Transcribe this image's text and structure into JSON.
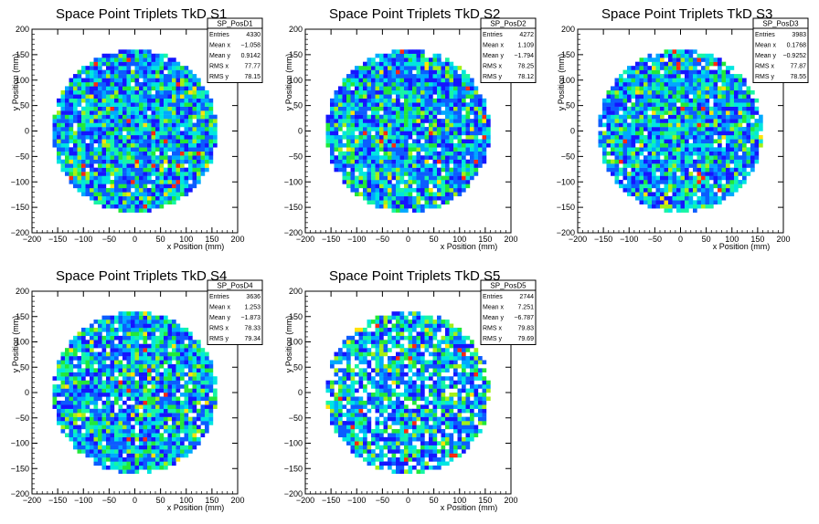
{
  "colors": {
    "background": "#ffffff",
    "frame": "#000000"
  },
  "chart_data": [
    {
      "type": "heatmap",
      "title": "Space Point Triplets TkD S1",
      "xlabel": "x Position (mm)",
      "ylabel": "y Position (mm)",
      "xlim": [
        -200,
        200
      ],
      "ylim": [
        -200,
        200
      ],
      "xticks": [
        -200,
        -150,
        -100,
        -50,
        0,
        50,
        100,
        150,
        200
      ],
      "yticks": [
        -200,
        -150,
        -100,
        -50,
        0,
        50,
        100,
        150,
        200
      ],
      "stats": {
        "name": "SP_PosD1",
        "rows": [
          {
            "label": "Entries",
            "value": "4330"
          },
          {
            "label": "Mean x",
            "value": "−1.058"
          },
          {
            "label": "Mean y",
            "value": "0.9142"
          },
          {
            "label": "RMS x",
            "value": "77.77"
          },
          {
            "label": "RMS y",
            "value": "78.15"
          }
        ]
      },
      "distribution": {
        "radius": 160,
        "bin_size": 8,
        "fill_fraction": 0.97,
        "mean_bin_content": 8.6
      }
    },
    {
      "type": "heatmap",
      "title": "Space Point Triplets TkD S2",
      "xlabel": "x Position (mm)",
      "ylabel": "y Position (mm)",
      "xlim": [
        -200,
        200
      ],
      "ylim": [
        -200,
        200
      ],
      "xticks": [
        -200,
        -150,
        -100,
        -50,
        0,
        50,
        100,
        150,
        200
      ],
      "yticks": [
        -200,
        -150,
        -100,
        -50,
        0,
        50,
        100,
        150,
        200
      ],
      "stats": {
        "name": "SP_PosD2",
        "rows": [
          {
            "label": "Entries",
            "value": "4272"
          },
          {
            "label": "Mean x",
            "value": "1.109"
          },
          {
            "label": "Mean y",
            "value": "−1.794"
          },
          {
            "label": "RMS x",
            "value": "78.25"
          },
          {
            "label": "RMS y",
            "value": "78.12"
          }
        ]
      },
      "distribution": {
        "radius": 160,
        "bin_size": 8,
        "fill_fraction": 0.96,
        "mean_bin_content": 8.5
      }
    },
    {
      "type": "heatmap",
      "title": "Space Point Triplets TkD S3",
      "xlabel": "x Position (mm)",
      "ylabel": "y Position (mm)",
      "xlim": [
        -200,
        200
      ],
      "ylim": [
        -200,
        200
      ],
      "xticks": [
        -200,
        -150,
        -100,
        -50,
        0,
        50,
        100,
        150,
        200
      ],
      "yticks": [
        -200,
        -150,
        -100,
        -50,
        0,
        50,
        100,
        150,
        200
      ],
      "stats": {
        "name": "SP_PosD3",
        "rows": [
          {
            "label": "Entries",
            "value": "3983"
          },
          {
            "label": "Mean x",
            "value": "0.1768"
          },
          {
            "label": "Mean y",
            "value": "−0.9252"
          },
          {
            "label": "RMS x",
            "value": "77.87"
          },
          {
            "label": "RMS y",
            "value": "78.55"
          }
        ]
      },
      "distribution": {
        "radius": 160,
        "bin_size": 8,
        "fill_fraction": 0.95,
        "mean_bin_content": 7.9
      }
    },
    {
      "type": "heatmap",
      "title": "Space Point Triplets TkD S4",
      "xlabel": "x Position (mm)",
      "ylabel": "y Position (mm)",
      "xlim": [
        -200,
        200
      ],
      "ylim": [
        -200,
        200
      ],
      "xticks": [
        -200,
        -150,
        -100,
        -50,
        0,
        50,
        100,
        150,
        200
      ],
      "yticks": [
        -200,
        -150,
        -100,
        -50,
        0,
        50,
        100,
        150,
        200
      ],
      "stats": {
        "name": "SP_PosD4",
        "rows": [
          {
            "label": "Entries",
            "value": "3636"
          },
          {
            "label": "Mean x",
            "value": "1.253"
          },
          {
            "label": "Mean y",
            "value": "−1.873"
          },
          {
            "label": "RMS x",
            "value": "78.33"
          },
          {
            "label": "RMS y",
            "value": "79.34"
          }
        ]
      },
      "distribution": {
        "radius": 160,
        "bin_size": 8,
        "fill_fraction": 0.94,
        "mean_bin_content": 7.3
      }
    },
    {
      "type": "heatmap",
      "title": "Space Point Triplets TkD S5",
      "xlabel": "x Position (mm)",
      "ylabel": "y Position (mm)",
      "xlim": [
        -200,
        200
      ],
      "ylim": [
        -200,
        200
      ],
      "xticks": [
        -200,
        -150,
        -100,
        -50,
        0,
        50,
        100,
        150,
        200
      ],
      "yticks": [
        -200,
        -150,
        -100,
        -50,
        0,
        50,
        100,
        150,
        200
      ],
      "stats": {
        "name": "SP_PosD5",
        "rows": [
          {
            "label": "Entries",
            "value": "2744"
          },
          {
            "label": "Mean x",
            "value": "7.251"
          },
          {
            "label": "Mean y",
            "value": "−6.787"
          },
          {
            "label": "RMS x",
            "value": "79.83"
          },
          {
            "label": "RMS y",
            "value": "79.69"
          }
        ]
      },
      "distribution": {
        "radius": 160,
        "bin_size": 8,
        "fill_fraction": 0.82,
        "mean_bin_content": 6.2
      }
    }
  ]
}
